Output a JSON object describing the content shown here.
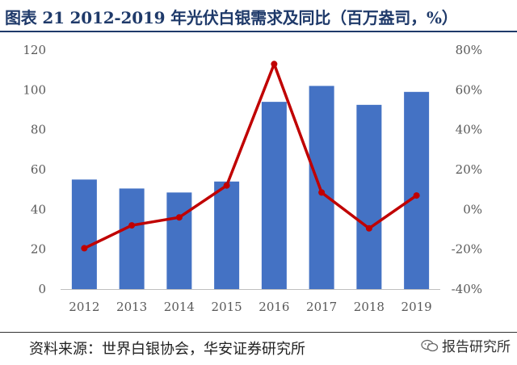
{
  "title": "图表 21 2012-2019 年光伏白银需求及同比（百万盎司，%）",
  "source": "资料来源：世界白银协会，华安证券研究所",
  "watermark": "报告研究所",
  "colors": {
    "bar": "#4472c4",
    "line": "#c00000",
    "title": "#1f3a6a"
  },
  "chart_data": {
    "type": "bar",
    "categories": [
      "2012",
      "2013",
      "2014",
      "2015",
      "2016",
      "2017",
      "2018",
      "2019"
    ],
    "series": [
      {
        "type": "bar",
        "axis": "left",
        "values": [
          55,
          50.5,
          48.5,
          54,
          94,
          102,
          92.5,
          99
        ]
      },
      {
        "type": "line",
        "axis": "right",
        "values": [
          -19.5,
          -8,
          -4,
          12,
          73,
          8.5,
          -9.5,
          7
        ]
      }
    ],
    "left_axis": {
      "ylim": [
        0,
        120
      ],
      "ticks": [
        "0",
        "20",
        "40",
        "60",
        "80",
        "100",
        "120"
      ]
    },
    "right_axis": {
      "ylim": [
        -40,
        80
      ],
      "ticks": [
        "-40%",
        "-20%",
        "0%",
        "20%",
        "40%",
        "60%",
        "80%"
      ]
    },
    "grid": false
  }
}
